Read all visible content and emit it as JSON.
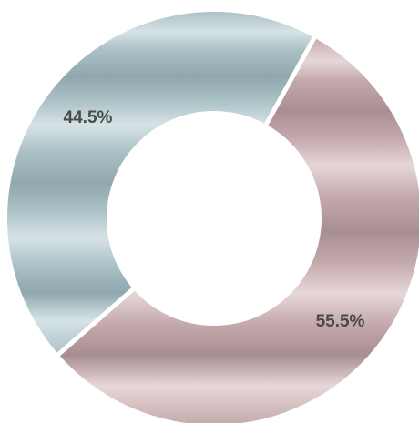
{
  "chart_data": {
    "type": "pie",
    "variant": "donut",
    "title": "",
    "legend": "none",
    "slices": [
      {
        "label": "55.5%",
        "value": 55.5,
        "color": "#c4a9ac",
        "color_light": "#e7d7d8",
        "color_dark": "#a88e92"
      },
      {
        "label": "44.5%",
        "value": 44.5,
        "color": "#abc1c6",
        "color_light": "#d6e3e6",
        "color_dark": "#8fa7ad"
      }
    ]
  }
}
